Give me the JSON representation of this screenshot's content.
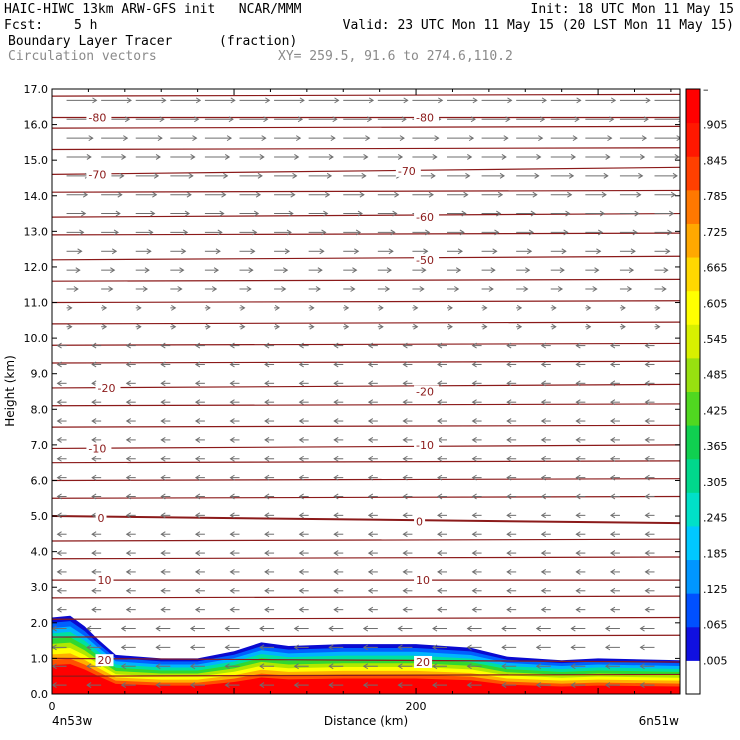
{
  "header": {
    "line1_left": "HAIC-HIWC 13km ARW-GFS init   NCAR/MMM",
    "line1_right": "Init: 18 UTC Mon 11 May 15",
    "fcst_label": "Fcst:",
    "fcst_value": "5 h",
    "valid": "Valid: 23 UTC Mon 11 May 15 (20 LST Mon 11 May 15)",
    "field": "Boundary Layer Tracer",
    "field_units": "(fraction)",
    "vectors": "Circulation vectors",
    "xy": "XY= 259.5, 91.6 to 274.6,110.2"
  },
  "colors": {
    "contour": "#8b1a1a",
    "vector": "#6e6e6e",
    "colorbar": [
      "#ffffff",
      "#1010e0",
      "#0050ff",
      "#0096ff",
      "#00c8ff",
      "#00e0c8",
      "#00d88c",
      "#10d050",
      "#50d820",
      "#98e010",
      "#d8f000",
      "#ffff00",
      "#ffd800",
      "#ffa800",
      "#ff7800",
      "#ff4000",
      "#ff1800",
      "#ff0000"
    ]
  },
  "chart_data": {
    "type": "cross-section",
    "ylabel": "Height (km)",
    "xlabel": "Distance (km)",
    "x_start_label": "4n53w",
    "x_end_label": "6n51w",
    "ylim": [
      0,
      17
    ],
    "xlim": [
      0,
      345
    ],
    "y_ticks": [
      "0.0",
      "1.0",
      "2.0",
      "3.0",
      "4.0",
      "5.0",
      "6.0",
      "7.0",
      "8.0",
      "9.0",
      "10.0",
      "11.0",
      "12.0",
      "13.0",
      "14.0",
      "15.0",
      "16.0",
      "17.0"
    ],
    "x_ticks": [
      {
        "value": 0,
        "label": "0"
      },
      {
        "value": 200,
        "label": "200"
      }
    ],
    "colorbar_labels": [
      "–",
      ".905",
      ".845",
      ".785",
      ".725",
      ".665",
      ".605",
      ".545",
      ".485",
      ".425",
      ".365",
      ".305",
      ".245",
      ".185",
      ".125",
      ".065",
      ".005"
    ],
    "temperature_contours": [
      {
        "label": "-80",
        "y_left": 16.2,
        "y_right": 16.2,
        "label_pos": [
          [
            20,
            16.2
          ],
          [
            200,
            16.2
          ]
        ]
      },
      {
        "label": "-70",
        "y_left": 14.6,
        "y_right": 14.8,
        "label_pos": [
          [
            20,
            14.6
          ],
          [
            190,
            14.7
          ]
        ]
      },
      {
        "label": "-60",
        "y_left": 13.4,
        "y_right": 13.5,
        "label_pos": [
          [
            200,
            13.4
          ]
        ]
      },
      {
        "label": "-50",
        "y_left": 12.2,
        "y_right": 12.3,
        "label_pos": [
          [
            200,
            12.2
          ]
        ]
      },
      {
        "label": "-20",
        "y_left": 8.6,
        "y_right": 8.7,
        "label_pos": [
          [
            25,
            8.6
          ],
          [
            200,
            8.5
          ]
        ]
      },
      {
        "label": "-10",
        "y_left": 6.9,
        "y_right": 7.0,
        "label_pos": [
          [
            20,
            6.9
          ],
          [
            200,
            7.0
          ]
        ]
      },
      {
        "label": "0",
        "y_left": 5.0,
        "y_right": 4.8,
        "label_pos": [
          [
            25,
            4.95
          ],
          [
            200,
            4.85
          ]
        ]
      },
      {
        "label": "10",
        "y_left": 3.2,
        "y_right": 3.2,
        "label_pos": [
          [
            25,
            3.2
          ],
          [
            200,
            3.2
          ]
        ]
      },
      {
        "label": "20",
        "y_left": 1.0,
        "y_right": 0.9,
        "label_pos": [
          [
            25,
            0.95
          ],
          [
            200,
            0.9
          ]
        ]
      }
    ],
    "unlabeled_contour_heights": [
      16.8,
      15.9,
      15.3,
      14.1,
      12.9,
      11.6,
      11.0,
      10.4,
      9.8,
      9.3,
      8.1,
      7.5,
      6.5,
      6.0,
      5.5,
      4.3,
      3.8,
      2.7,
      2.1,
      1.6,
      0.5
    ],
    "tracer_top_km": [
      [
        0,
        2.15
      ],
      [
        10,
        2.2
      ],
      [
        18,
        1.9
      ],
      [
        25,
        1.55
      ],
      [
        35,
        1.1
      ],
      [
        60,
        1.0
      ],
      [
        80,
        1.0
      ],
      [
        100,
        1.2
      ],
      [
        115,
        1.45
      ],
      [
        130,
        1.35
      ],
      [
        160,
        1.4
      ],
      [
        200,
        1.4
      ],
      [
        230,
        1.3
      ],
      [
        250,
        1.05
      ],
      [
        280,
        0.95
      ],
      [
        300,
        1.0
      ],
      [
        345,
        0.95
      ]
    ],
    "wind_vectors": {
      "upper_layer_km": [
        11,
        17
      ],
      "upper_direction": "eastward",
      "lower_layer_km": [
        0,
        10
      ],
      "lower_direction": "westward"
    }
  }
}
